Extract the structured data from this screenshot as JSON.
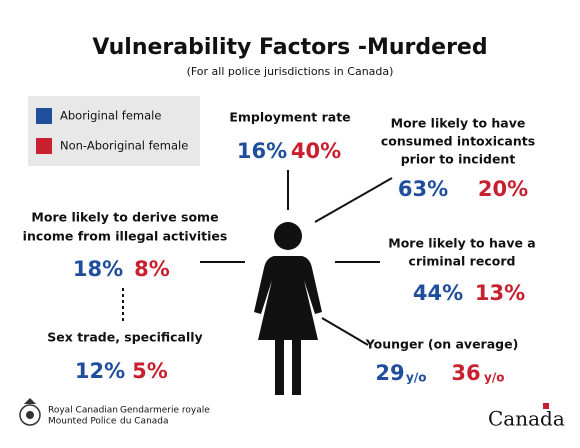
{
  "header": {
    "title": "Vulnerability Factors -Murdered",
    "subtitle": "(For all police jurisdictions in Canada)"
  },
  "legend": [
    {
      "label": "Aboriginal female",
      "color": "#1f4e9c"
    },
    {
      "label": "Non-Aboriginal female",
      "color": "#c8202e"
    }
  ],
  "factors": [
    {
      "label": [
        "Employment rate"
      ],
      "aboriginal": "16%",
      "non_aboriginal": "40%"
    },
    {
      "label": [
        "More likely to have",
        "consumed intoxicants",
        "prior to incident"
      ],
      "aboriginal": "63%",
      "non_aboriginal": "20%"
    },
    {
      "label": [
        "More likely to derive some",
        "income from illegal activities"
      ],
      "aboriginal": "18%",
      "non_aboriginal": "8%"
    },
    {
      "label": [
        "More likely to have a",
        "criminal record"
      ],
      "aboriginal": "44%",
      "non_aboriginal": "13%"
    },
    {
      "label": [
        "Sex trade, specifically"
      ],
      "aboriginal": "12%",
      "non_aboriginal": "5%"
    },
    {
      "label": [
        "Younger (on average)"
      ],
      "aboriginal": "29",
      "non_aboriginal": "36",
      "unit": "y/o"
    }
  ],
  "footer": {
    "agency_en": [
      "Royal Canadian",
      "Mounted Police"
    ],
    "agency_fr": [
      "Gendarmerie royale",
      "du Canada"
    ],
    "wordmark": "Canada"
  }
}
